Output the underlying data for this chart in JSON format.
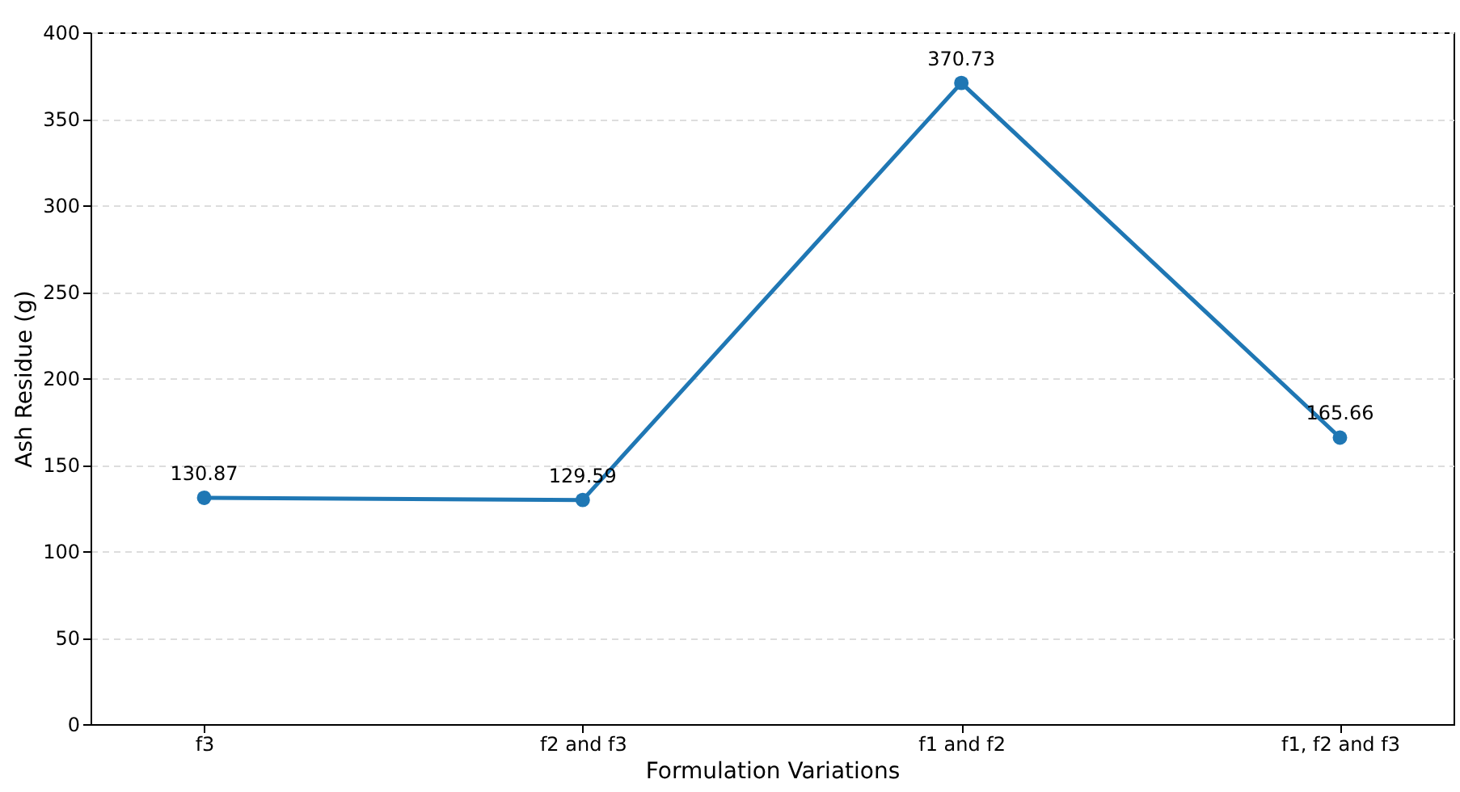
{
  "chart_data": {
    "type": "line",
    "xlabel": "Formulation Variations",
    "ylabel": "Ash Residue (g)",
    "categories": [
      "f3",
      "f2 and f3",
      "f1 and f2",
      "f1, f2 and f3"
    ],
    "series": [
      {
        "color": "#1f77b4",
        "values": [
          130.87,
          129.59,
          370.73,
          165.66
        ]
      }
    ],
    "ylim": [
      0,
      400
    ],
    "yticks": [
      0,
      50,
      100,
      150,
      200,
      250,
      300,
      350,
      400
    ],
    "grid": "y",
    "marker": "circle",
    "line_style": "solid",
    "data_labels": true
  }
}
